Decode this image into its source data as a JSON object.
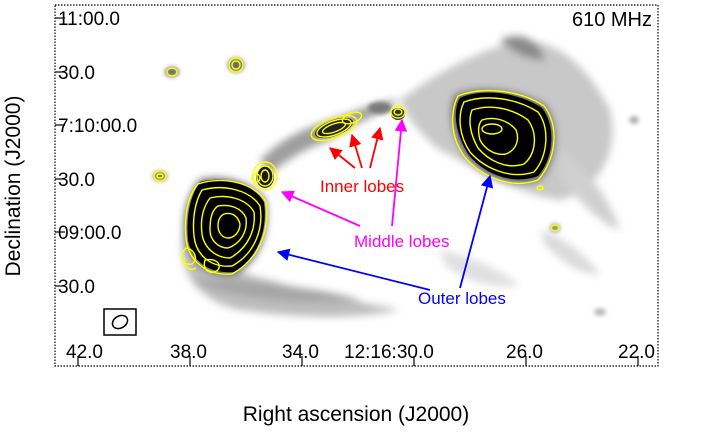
{
  "chart_data": {
    "type": "image-contour",
    "title": "",
    "frequency_label": "610 MHz",
    "xlabel": "Right ascension (J2000)",
    "ylabel": "Declination (J2000)",
    "x_ticks": [
      "42.0",
      "38.0",
      "34.0",
      "12:16:30.0",
      "26.0",
      "22.0"
    ],
    "y_ticks": [
      "11:00.0",
      "30.0",
      "7:10:00.0",
      "30.0",
      "09:00.0",
      "30.0"
    ],
    "x_axis_unit": "right ascension (s)",
    "y_axis_unit": "declination (arcsec)",
    "grayscale": "radio continuum intensity",
    "contours": {
      "color": "#ffff00"
    },
    "annotations": [
      {
        "label": "Inner lobes",
        "color": "#ff0000"
      },
      {
        "label": "Middle lobes",
        "color": "#ff00ff"
      },
      {
        "label": "Outer lobes",
        "color": "#0000ff"
      }
    ],
    "beam": "synthesized beam ellipse, lower-left corner"
  }
}
